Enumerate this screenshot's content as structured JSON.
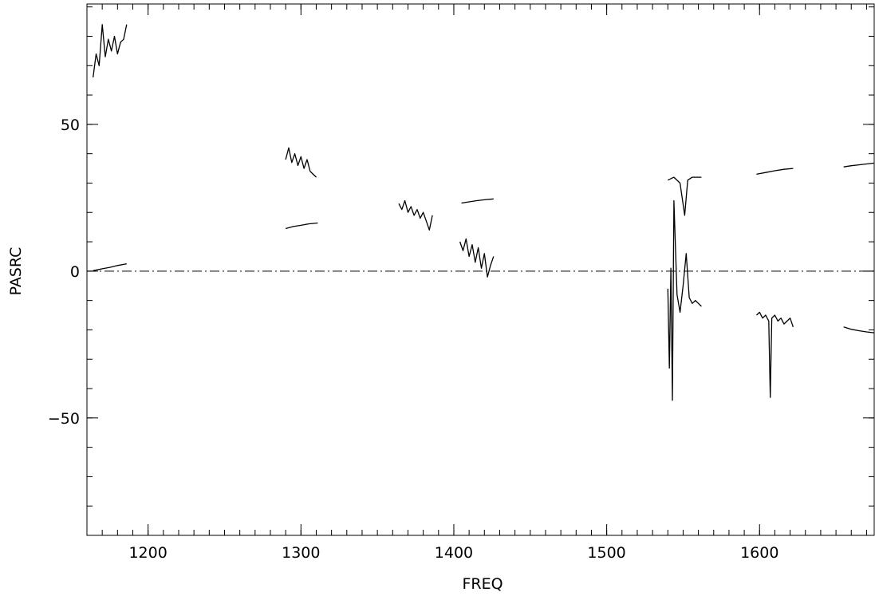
{
  "chart_data": {
    "type": "line",
    "title": "",
    "xlabel": "FREQ",
    "ylabel": "PASRC",
    "xlim": [
      1160,
      1675
    ],
    "ylim": [
      -90,
      91
    ],
    "x_ticks": [
      1200,
      1300,
      1400,
      1500,
      1600
    ],
    "x_tick_labels": [
      "1200",
      "1300",
      "1400",
      "1500",
      "1600"
    ],
    "x_minor_step": 10,
    "y_ticks": [
      -50,
      0,
      50
    ],
    "y_tick_labels": [
      "−50",
      "0",
      "50"
    ],
    "y_minor_step": 10,
    "reference_line": {
      "y": 0,
      "style": "dash-dot"
    },
    "grid": false,
    "line_color": "#000000",
    "series": [
      {
        "segment": "s1",
        "x": [
          1164,
          1166,
          1168,
          1170,
          1172,
          1174,
          1176,
          1178,
          1180,
          1182,
          1184,
          1186
        ],
        "y": [
          66,
          74,
          70,
          84,
          73,
          79,
          75,
          80,
          74,
          78,
          79,
          84
        ]
      },
      {
        "segment": "s2",
        "x": [
          1164,
          1170,
          1175,
          1180,
          1186
        ],
        "y": [
          0.2,
          0.8,
          1.3,
          1.9,
          2.5
        ]
      },
      {
        "segment": "s3",
        "x": [
          1290,
          1292,
          1294,
          1296,
          1298,
          1300,
          1302,
          1304,
          1306,
          1308,
          1310
        ],
        "y": [
          38,
          42,
          37,
          40,
          36,
          39,
          35,
          38,
          34,
          33,
          32
        ]
      },
      {
        "segment": "s4",
        "x": [
          1290,
          1295,
          1300,
          1305,
          1311
        ],
        "y": [
          14.5,
          15.2,
          15.6,
          16.1,
          16.4
        ]
      },
      {
        "segment": "s5",
        "x": [
          1364,
          1366,
          1368,
          1370,
          1372,
          1374,
          1376,
          1378,
          1380,
          1382,
          1384,
          1386
        ],
        "y": [
          23,
          21,
          24,
          20,
          22,
          19,
          21,
          18,
          20,
          17,
          14,
          19
        ]
      },
      {
        "segment": "s6",
        "x": [
          1405,
          1410,
          1415,
          1420,
          1426
        ],
        "y": [
          23.2,
          23.6,
          24.0,
          24.3,
          24.6
        ]
      },
      {
        "segment": "s7",
        "x": [
          1404,
          1406,
          1408,
          1410,
          1412,
          1414,
          1416,
          1418,
          1420,
          1422,
          1424,
          1426
        ],
        "y": [
          10,
          7,
          11,
          5,
          9,
          3,
          8,
          1,
          6,
          -2,
          2,
          5
        ]
      },
      {
        "segment": "s8",
        "x": [
          1540,
          1541,
          1542,
          1543,
          1544,
          1546,
          1548,
          1550,
          1552,
          1554,
          1556,
          1558,
          1560,
          1562
        ],
        "y": [
          -6,
          -33,
          1,
          -44,
          24,
          -8,
          -14,
          -5,
          6,
          -9,
          -11,
          -10,
          -11,
          -12
        ]
      },
      {
        "segment": "s9",
        "x": [
          1540,
          1544,
          1548,
          1551,
          1553,
          1556,
          1562
        ],
        "y": [
          31,
          32,
          30,
          19,
          31,
          32,
          32
        ]
      },
      {
        "segment": "s10",
        "x": [
          1598,
          1604,
          1610,
          1616,
          1622
        ],
        "y": [
          33,
          33.6,
          34.2,
          34.7,
          35
        ]
      },
      {
        "segment": "s11",
        "x": [
          1598,
          1600,
          1602,
          1604,
          1606,
          1607,
          1608,
          1610,
          1612,
          1614,
          1616,
          1618,
          1620,
          1622
        ],
        "y": [
          -15,
          -14,
          -16,
          -15,
          -17,
          -43,
          -16,
          -15,
          -17,
          -16,
          -18,
          -17,
          -16,
          -19
        ]
      },
      {
        "segment": "s12",
        "x": [
          1655,
          1660,
          1665,
          1670,
          1675
        ],
        "y": [
          35.5,
          35.9,
          36.2,
          36.5,
          36.8
        ]
      },
      {
        "segment": "s13",
        "x": [
          1655,
          1660,
          1665,
          1670,
          1675
        ],
        "y": [
          -19,
          -19.8,
          -20.3,
          -20.7,
          -21
        ]
      }
    ]
  }
}
